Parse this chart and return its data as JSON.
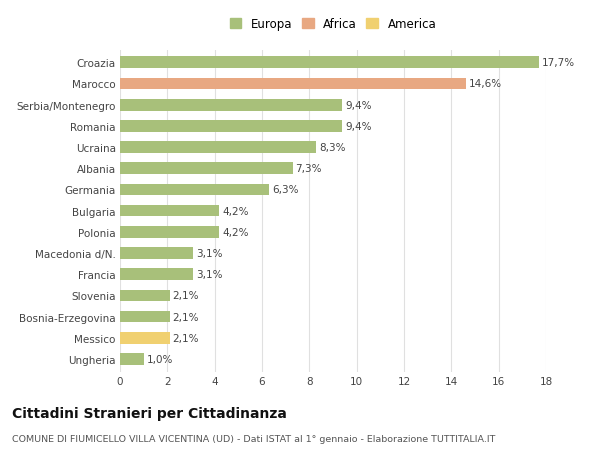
{
  "categories": [
    "Croazia",
    "Marocco",
    "Serbia/Montenegro",
    "Romania",
    "Ucraina",
    "Albania",
    "Germania",
    "Bulgaria",
    "Polonia",
    "Macedonia d/N.",
    "Francia",
    "Slovenia",
    "Bosnia-Erzegovina",
    "Messico",
    "Ungheria"
  ],
  "values": [
    17.7,
    14.6,
    9.4,
    9.4,
    8.3,
    7.3,
    6.3,
    4.2,
    4.2,
    3.1,
    3.1,
    2.1,
    2.1,
    2.1,
    1.0
  ],
  "labels": [
    "17,7%",
    "14,6%",
    "9,4%",
    "9,4%",
    "8,3%",
    "7,3%",
    "6,3%",
    "4,2%",
    "4,2%",
    "3,1%",
    "3,1%",
    "2,1%",
    "2,1%",
    "2,1%",
    "1,0%"
  ],
  "colors": [
    "#a8c07a",
    "#e8a882",
    "#a8c07a",
    "#a8c07a",
    "#a8c07a",
    "#a8c07a",
    "#a8c07a",
    "#a8c07a",
    "#a8c07a",
    "#a8c07a",
    "#a8c07a",
    "#a8c07a",
    "#a8c07a",
    "#f0d070",
    "#a8c07a"
  ],
  "legend": [
    {
      "label": "Europa",
      "color": "#a8c07a"
    },
    {
      "label": "Africa",
      "color": "#e8a882"
    },
    {
      "label": "America",
      "color": "#f0d070"
    }
  ],
  "xlim": [
    0,
    18
  ],
  "xticks": [
    0,
    2,
    4,
    6,
    8,
    10,
    12,
    14,
    16,
    18
  ],
  "title": "Cittadini Stranieri per Cittadinanza",
  "subtitle": "COMUNE DI FIUMICELLO VILLA VICENTINA (UD) - Dati ISTAT al 1° gennaio - Elaborazione TUTTITALIA.IT",
  "background_color": "#ffffff",
  "grid_color": "#e0e0e0",
  "bar_height": 0.55,
  "label_fontsize": 7.5,
  "tick_fontsize": 7.5,
  "legend_fontsize": 8.5,
  "title_fontsize": 10,
  "subtitle_fontsize": 6.8
}
